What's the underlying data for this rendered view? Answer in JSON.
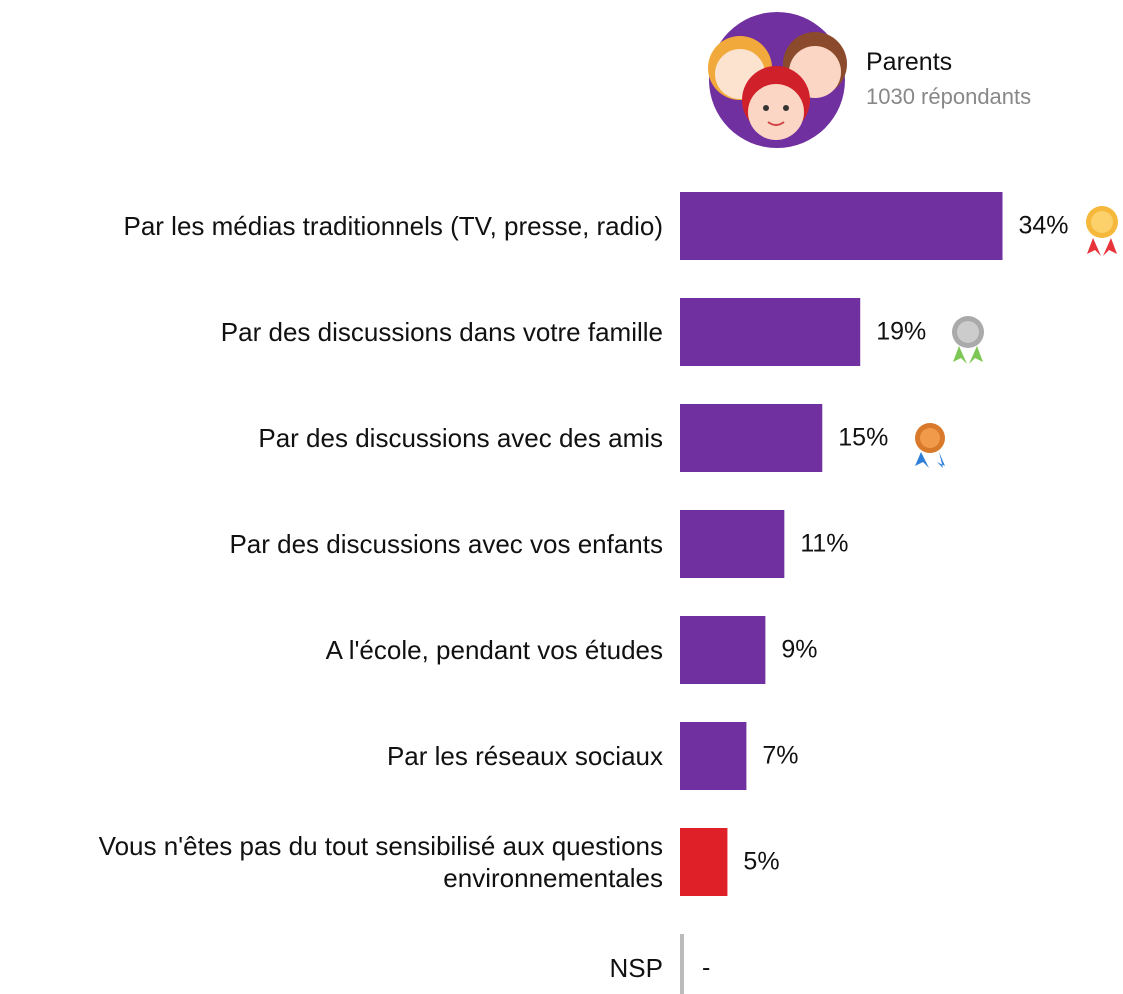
{
  "chart_data": {
    "type": "bar",
    "orientation": "horizontal",
    "title": "Parents",
    "subtitle": "1030 répondants",
    "categories": [
      "Par les médias traditionnels (TV, presse, radio)",
      "Par des discussions dans votre famille",
      "Par des discussions avec des amis",
      "Par des discussions avec vos enfants",
      "A l'école, pendant vos études",
      "Par les réseaux sociaux",
      "Vous n'êtes pas du tout sensibilisé aux questions environnementales",
      "NSP"
    ],
    "values": [
      34,
      19,
      15,
      11,
      9,
      7,
      5,
      null
    ],
    "value_labels": [
      "34%",
      "19%",
      "15%",
      "11%",
      "9%",
      "7%",
      "5%",
      "-"
    ],
    "colors": [
      "#7030a0",
      "#7030a0",
      "#7030a0",
      "#7030a0",
      "#7030a0",
      "#7030a0",
      "#e02028",
      "#7030a0"
    ],
    "xlim": [
      0,
      35
    ]
  }
}
